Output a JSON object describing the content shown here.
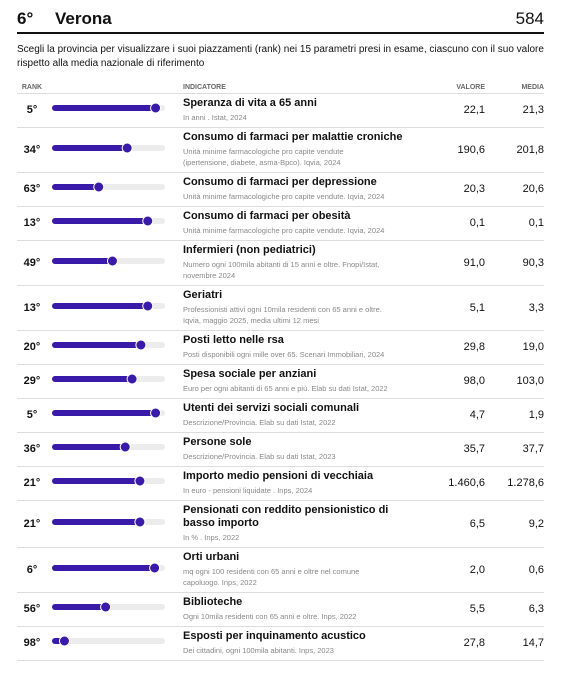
{
  "header": {
    "rank": "6°",
    "title": "Verona",
    "score": "584"
  },
  "description": "Scegli la provincia per visualizzare i suoi piazzamenti (rank) nei 15 parametri presi in esame, ciascuno con il suo valore rispetto alla media nazionale di riferimento",
  "table": {
    "columns": [
      "RANK",
      "INDICATORE",
      "VALORE",
      "MEDIA"
    ],
    "rows": [
      {
        "rank": 5,
        "rank_label": "5°",
        "title": "Speranza di vita a 65 anni",
        "subtitle": "In anni . Istat, 2024",
        "value": "22,1",
        "average": "21,3"
      },
      {
        "rank": 34,
        "rank_label": "34°",
        "title": "Consumo di farmaci per malattie croniche",
        "subtitle": "Unità minime farmacologiche pro capite vendute (ipertensione, diabete, asma-Bpco). Iqvia, 2024",
        "value": "190,6",
        "average": "201,8"
      },
      {
        "rank": 63,
        "rank_label": "63°",
        "title": "Consumo di farmaci per depressione",
        "subtitle": "Unità minime farmacologiche pro capite vendute. Iqvia, 2024",
        "value": "20,3",
        "average": "20,6"
      },
      {
        "rank": 13,
        "rank_label": "13°",
        "title": "Consumo di farmaci per obesità",
        "subtitle": "Unità minime farmacologiche pro capite vendute. Iqvia, 2024",
        "value": "0,1",
        "average": "0,1"
      },
      {
        "rank": 49,
        "rank_label": "49°",
        "title": "Infermieri (non pediatrici)",
        "subtitle": "Numero ogni 100mila abitanti di 15 anni e oltre. Fnopi/Istat, novembre 2024",
        "value": "91,0",
        "average": "90,3"
      },
      {
        "rank": 13,
        "rank_label": "13°",
        "title": "Geriatri",
        "subtitle": "Professionisti attivi ogni 10mila residenti con 65 anni e oltre. Iqvia, maggio 2025, media ultimi 12 mesi",
        "value": "5,1",
        "average": "3,3"
      },
      {
        "rank": 20,
        "rank_label": "20°",
        "title": "Posti letto nelle rsa",
        "subtitle": "Posti disponibili ogni mille over 65. Scenari Immobiliari, 2024",
        "value": "29,8",
        "average": "19,0"
      },
      {
        "rank": 29,
        "rank_label": "29°",
        "title": "Spesa sociale per anziani",
        "subtitle": "Euro per ogni abitanti di 65 anni e più. Elab su dati Istat, 2022",
        "value": "98,0",
        "average": "103,0"
      },
      {
        "rank": 5,
        "rank_label": "5°",
        "title": "Utenti dei servizi sociali comunali",
        "subtitle": "Descrizione/Provincia. Elab su dati Istat, 2022",
        "value": "4,7",
        "average": "1,9"
      },
      {
        "rank": 36,
        "rank_label": "36°",
        "title": "Persone sole",
        "subtitle": "Descrizione/Provincia. Elab su dati Istat, 2023",
        "value": "35,7",
        "average": "37,7"
      },
      {
        "rank": 21,
        "rank_label": "21°",
        "title": "Importo medio pensioni di vecchiaia",
        "subtitle": "In euro - pensioni liquidate . Inps, 2024",
        "value": "1.460,6",
        "average": "1.278,6"
      },
      {
        "rank": 21,
        "rank_label": "21°",
        "title": "Pensionati con reddito pensionistico di basso importo",
        "subtitle": "In % . Inps, 2022",
        "value": "6,5",
        "average": "9,2"
      },
      {
        "rank": 6,
        "rank_label": "6°",
        "title": "Orti urbani",
        "subtitle": "mq ogni 100 residenti con 65 anni e oltre nel comune capoluogo. Inps, 2022",
        "value": "2,0",
        "average": "0,6"
      },
      {
        "rank": 56,
        "rank_label": "56°",
        "title": "Biblioteche",
        "subtitle": "Ogni 10mila residenti con 65 anni e oltre. Inps, 2022",
        "value": "5,5",
        "average": "6,3"
      },
      {
        "rank": 98,
        "rank_label": "98°",
        "title": "Esposti per inquinamento acustico",
        "subtitle": "Dei cittadini, ogni 100mila abitanti. Inps, 2023",
        "value": "27,8",
        "average": "14,7"
      }
    ]
  }
}
